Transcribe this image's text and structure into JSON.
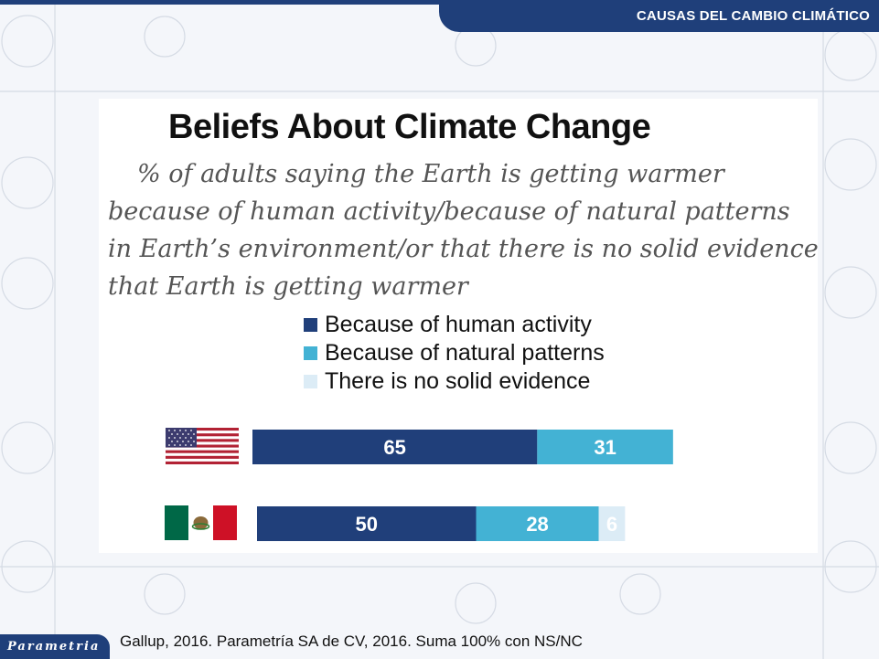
{
  "header": {
    "title": "CAUSAS DEL CAMBIO CLIMÁTICO"
  },
  "colors": {
    "brand": "#1f3f7a",
    "human": "#203f7a",
    "natural": "#43b2d4",
    "no_evidence": "#dcecf6"
  },
  "chart_data": {
    "type": "bar",
    "orientation": "horizontal-stacked",
    "title": "Beliefs About Climate Change",
    "subtitle": "% of adults saying the Earth is getting warmer because of human activity/because of natural patterns in Earth’s environment/or that there is no solid evidence that Earth is getting warmer",
    "categories": [
      "United States",
      "Mexico"
    ],
    "category_icons": [
      "us-flag-icon",
      "mexico-flag-icon"
    ],
    "series": [
      {
        "name": "Because of human activity",
        "values": [
          65,
          50
        ],
        "color": "#203f7a"
      },
      {
        "name": "Because of natural patterns",
        "values": [
          31,
          28
        ],
        "color": "#43b2d4"
      },
      {
        "name": "There is no solid evidence",
        "values": [
          0,
          6
        ],
        "color": "#dcecf6"
      }
    ],
    "legend_position": "top",
    "grid": false
  },
  "footer": {
    "logo_text": "Parametria",
    "source": "Gallup, 2016. Parametría SA de CV, 2016. Suma 100% con NS/NC"
  }
}
